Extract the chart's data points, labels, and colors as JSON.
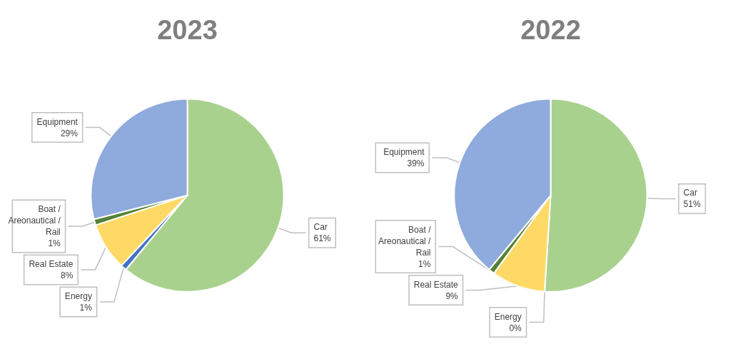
{
  "chart_data": [
    {
      "type": "pie",
      "title": "2023",
      "categories": [
        "Car",
        "Energy",
        "Real Estate",
        "Boat / Areonautical / Rail",
        "Equipment"
      ],
      "values": [
        61,
        1,
        8,
        1,
        29
      ],
      "value_labels": [
        "61%",
        "1%",
        "8%",
        "1%",
        "29%"
      ],
      "colors": [
        "#a9d18e",
        "#4472c4",
        "#ffd966",
        "#548235",
        "#8faadc"
      ]
    },
    {
      "type": "pie",
      "title": "2022",
      "categories": [
        "Car",
        "Energy",
        "Real Estate",
        "Boat / Areonautical / Rail",
        "Equipment"
      ],
      "values": [
        51,
        0,
        9,
        1,
        39
      ],
      "value_labels": [
        "51%",
        "0%",
        "9%",
        "1%",
        "39%"
      ],
      "colors": [
        "#a9d18e",
        "#4472c4",
        "#ffd966",
        "#548235",
        "#8faadc"
      ]
    }
  ]
}
